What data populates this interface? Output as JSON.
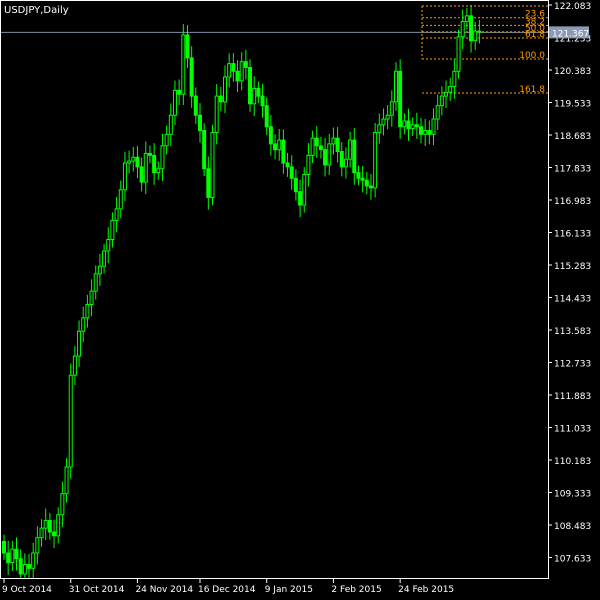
{
  "window": {
    "symbol_label": "USDJPY,Daily"
  },
  "colors": {
    "background": "#000000",
    "frame": "#ffffff",
    "candle": "#00ff00",
    "fib": "#ff9900",
    "price_line": "#7f8fa6",
    "price_badge": "#8c9bb3",
    "text": "#ffffff"
  },
  "chart_data": {
    "type": "candlestick",
    "title": "",
    "xlabel": "",
    "ylabel": "",
    "ylim": [
      107.07,
      122.083
    ],
    "y_ticks": [
      122.083,
      121.233,
      120.383,
      119.533,
      118.683,
      117.833,
      116.983,
      116.133,
      115.283,
      114.433,
      113.583,
      112.733,
      111.883,
      111.033,
      110.183,
      109.333,
      108.483,
      107.633
    ],
    "x_ticks": [
      "9 Oct 2014",
      "31 Oct 2014",
      "24 Nov 2014",
      "16 Dec 2014",
      "9 Jan 2015",
      "2 Feb 2015",
      "24 Feb 2015"
    ],
    "x_tick_index": [
      0,
      16,
      32,
      47,
      63,
      79,
      95
    ],
    "current_price": 121.367,
    "close": [
      107.75,
      107.5,
      107.85,
      107.6,
      107.2,
      107.45,
      107.35,
      107.75,
      108.15,
      108.4,
      108.6,
      108.3,
      108.2,
      108.75,
      109.3,
      110.0,
      112.4,
      112.9,
      113.55,
      113.9,
      114.25,
      114.6,
      115.05,
      115.25,
      115.65,
      115.95,
      116.45,
      116.75,
      117.25,
      117.95,
      118.0,
      118.1,
      117.85,
      117.45,
      118.2,
      118.15,
      117.7,
      117.8,
      118.4,
      118.7,
      119.2,
      119.85,
      119.75,
      121.3,
      120.7,
      119.7,
      119.2,
      118.8,
      117.8,
      117.05,
      118.75,
      119.7,
      119.55,
      120.2,
      120.55,
      120.35,
      120.1,
      120.6,
      120.45,
      119.5,
      119.9,
      119.7,
      119.45,
      118.9,
      118.45,
      118.3,
      118.55,
      117.95,
      117.85,
      117.55,
      117.2,
      116.85,
      117.65,
      118.15,
      118.6,
      118.4,
      118.3,
      117.9,
      118.45,
      118.6,
      118.25,
      117.85,
      118.05,
      118.55,
      117.7,
      117.55,
      117.5,
      117.35,
      117.3,
      118.75,
      118.95,
      119.1,
      119.2,
      119.55,
      120.35,
      118.9,
      119.05,
      118.85,
      118.95,
      118.9,
      118.7,
      118.8,
      118.7,
      119.1,
      119.45,
      119.7,
      119.8,
      119.95,
      120.35,
      121.25,
      121.65,
      121.8,
      121.15,
      121.4,
      121.37
    ],
    "fibonacci": [
      {
        "label": "23.6",
        "value": 121.75
      },
      {
        "label": "38.2",
        "value": 121.55
      },
      {
        "label": "50.0",
        "value": 121.38
      },
      {
        "label": "61.8",
        "value": 121.22
      },
      {
        "label": "100.0",
        "value": 120.67
      },
      {
        "label": "161.8",
        "value": 119.78
      }
    ]
  }
}
